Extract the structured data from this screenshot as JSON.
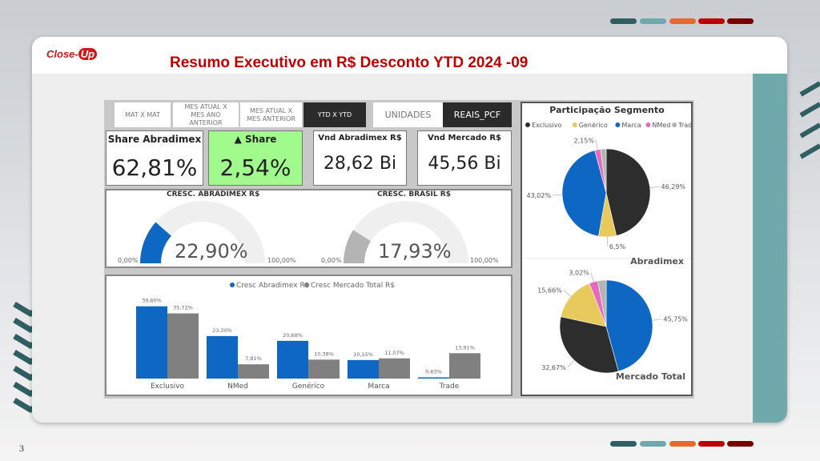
{
  "title": "Resumo Executivo em R$ Desconto YTD 2024 -09",
  "logo": "Close-Up",
  "page_number": "3",
  "colors": {
    "blue": "#0f67c4",
    "gray": "#808080",
    "black": "#2d2d2d",
    "yellow": "#e8c95c",
    "pink": "#e46cc0",
    "lightgray": "#b4b4b4",
    "green": "#a0fa8c",
    "teal": "#6fa9ab",
    "red": "#c00000"
  },
  "period_buttons": [
    "MAT X MAT",
    "MES ATUAL X MES ANO ANTERIOR",
    "MES ATUAL X MES ANTERIOR",
    "YTD X YTD"
  ],
  "unit_buttons": [
    "UNIDADES",
    "REAIS_PCF"
  ],
  "kpis": [
    {
      "title": "Share Abradimex",
      "value": "62,81%"
    },
    {
      "title": "▲ Share",
      "value": "2,54%"
    },
    {
      "title": "Vnd Abradimex R$",
      "value": "28,62 Bi"
    },
    {
      "title": "Vnd Mercado R$",
      "value": "45,56 Bi"
    }
  ],
  "gauges": [
    {
      "title": "CRESC. ABRADIMEX R$",
      "value": 22.9,
      "label": "22,90%",
      "min": "0,00%",
      "max": "100,00%"
    },
    {
      "title": "CRESC. BRASIL R$",
      "value": 17.93,
      "label": "17,93%",
      "min": "0,00%",
      "max": "100,00%"
    }
  ],
  "chart_data": [
    {
      "type": "bar",
      "title": "",
      "legend": [
        "Cresc Abradimex R$",
        "Cresc Mercado Total R$"
      ],
      "categories": [
        "Exclusivo",
        "NMed",
        "Genérico",
        "Marca",
        "Trade"
      ],
      "series": [
        {
          "name": "Cresc Abradimex R$",
          "values": [
            39.6,
            23.3,
            20.68,
            10.15,
            0.63
          ],
          "labels": [
            "39,60%",
            "23,30%",
            "20,68%",
            "10,15%",
            "0,63%"
          ]
        },
        {
          "name": "Cresc Mercado Total R$",
          "values": [
            35.72,
            7.81,
            10.38,
            11.07,
            13.91
          ],
          "labels": [
            "35,72%",
            "7,81%",
            "10,38%",
            "11,07%",
            "13,91%"
          ]
        }
      ]
    },
    {
      "type": "pie",
      "title": "Participação Segmento",
      "legend": [
        "Exclusivo",
        "Genérico",
        "Marca",
        "NMed",
        "Trade"
      ],
      "pies": [
        {
          "name": "Abradimex",
          "slices": [
            [
              "Exclusivo",
              46.29,
              "46,29%"
            ],
            [
              "Genérico",
              6.5,
              "6,5%"
            ],
            [
              "Marca",
              43.02,
              "43,02%"
            ],
            [
              "NMed",
              2.15,
              "2,15%"
            ],
            [
              "Trade",
              2.04,
              ""
            ]
          ]
        },
        {
          "name": "Mercado Total",
          "slices": [
            [
              "Marca",
              45.75,
              "45,75%"
            ],
            [
              "Exclusivo",
              32.67,
              "32,67%"
            ],
            [
              "Genérico",
              15.66,
              "15,66%"
            ],
            [
              "NMed",
              3.02,
              "3,02%"
            ],
            [
              "Trade",
              2.9,
              ""
            ]
          ]
        }
      ]
    }
  ]
}
